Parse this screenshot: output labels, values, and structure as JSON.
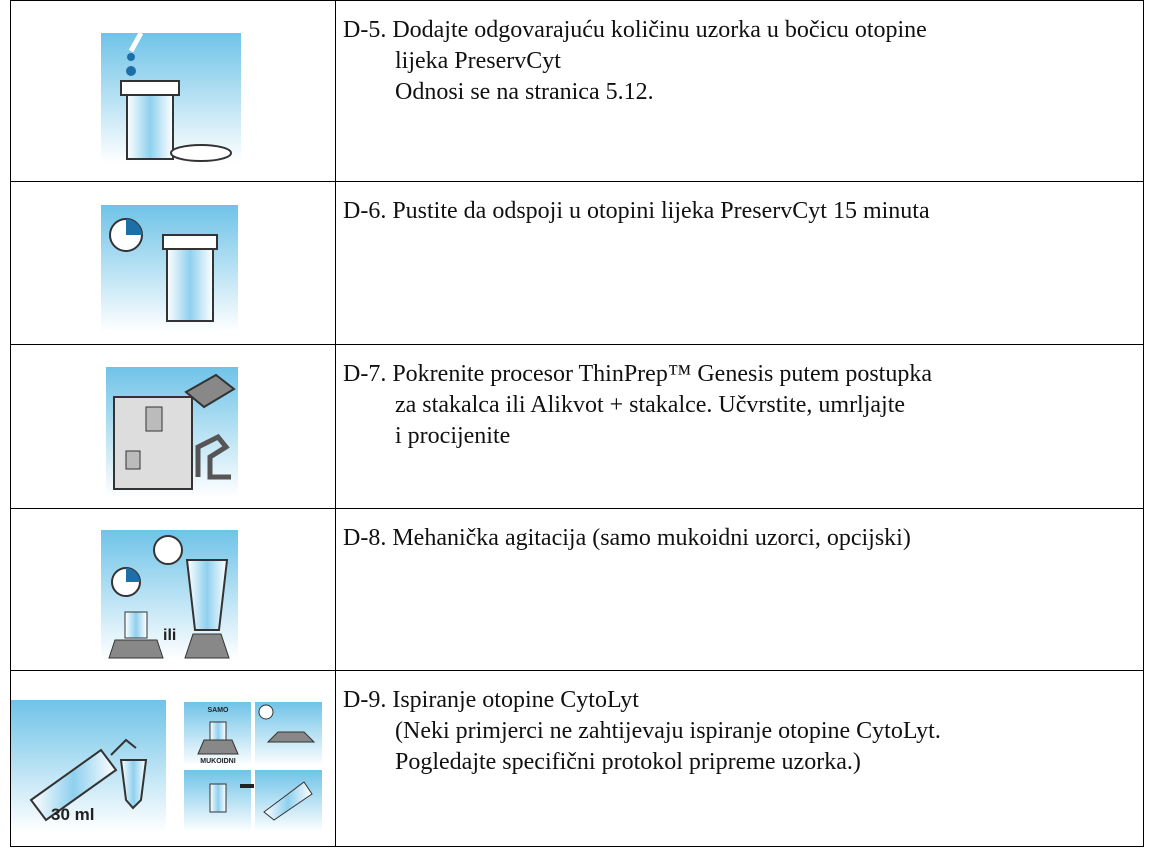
{
  "table": {
    "rows": [
      {
        "lines": [
          "D-5. Dodajte odgovarajuću količinu uzorka u bočicu otopine",
          "lijeka PreservCyt",
          "Odnosi se na stranica 5.12."
        ]
      },
      {
        "lines": [
          "D-6. Pustite da odspoji u otopini lijeka PreservCyt 15 minuta"
        ]
      },
      {
        "lines": [
          "D-7. Pokrenite procesor ThinPrep™ Genesis putem postupka",
          "za stakalca ili Alikvot + stakalce. Učvrstite, umrljajte",
          "i procijenite"
        ]
      },
      {
        "lines": [
          "D-8. Mehanička agitacija (samo mukoidni uzorci, opcijski)"
        ],
        "image_text": "ili"
      },
      {
        "lines": [
          "D-9. Ispiranje otopine CytoLyt",
          "(Neki primjerci ne zahtijevaju ispiranje otopine CytoLyt.",
          "Pogledajte specifični protokol pripreme uzorka.)"
        ],
        "image_texts": [
          "30 ml",
          "SAMO",
          "MUKOIDNI"
        ]
      }
    ]
  }
}
